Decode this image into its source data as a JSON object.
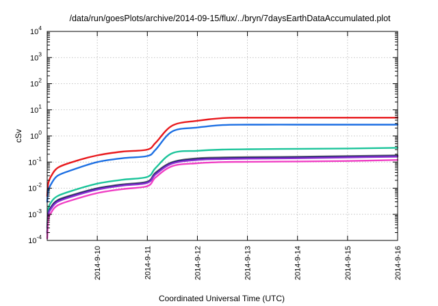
{
  "chart_data": {
    "type": "line",
    "title": "/data/run/goesPlots/archive/2014-09-15/flux/../bryn/7daysEarthDataAccumulated.plot",
    "xlabel": "Coordinated Universal Time (UTC)",
    "ylabel": "cSv",
    "y_scale": "log",
    "ylim": [
      0.0001,
      10000
    ],
    "xlim": [
      "2014-9-9",
      "2014-9-16"
    ],
    "grid": true,
    "legend": "none",
    "y_ticks": [
      {
        "base": "10",
        "exp": "-4",
        "value": 0.0001
      },
      {
        "base": "10",
        "exp": "-3",
        "value": 0.001
      },
      {
        "base": "10",
        "exp": "-2",
        "value": 0.01
      },
      {
        "base": "10",
        "exp": "-1",
        "value": 0.1
      },
      {
        "base": "10",
        "exp": "0",
        "value": 1
      },
      {
        "base": "10",
        "exp": "1",
        "value": 10
      },
      {
        "base": "10",
        "exp": "2",
        "value": 100
      },
      {
        "base": "10",
        "exp": "3",
        "value": 1000
      },
      {
        "base": "10",
        "exp": "4",
        "value": 10000
      }
    ],
    "x_ticks": [
      "2014-9-10",
      "2014-9-11",
      "2014-9-12",
      "2014-9-13",
      "2014-9-14",
      "2014-9-15",
      "2014-9-16"
    ],
    "x": [
      "2014-9-9 00:00",
      "2014-9-9 00:30",
      "2014-9-9 02:00",
      "2014-9-9 05:00",
      "2014-9-9 12:00",
      "2014-9-10 00:00",
      "2014-9-10 12:00",
      "2014-9-11 00:00",
      "2014-9-11 04:00",
      "2014-9-11 12:00",
      "2014-9-12 00:00",
      "2014-9-12 12:00",
      "2014-9-13 00:00",
      "2014-9-14 00:00",
      "2014-9-15 00:00",
      "2014-9-16 00:00"
    ],
    "series": [
      {
        "color": "#e8191d",
        "values": [
          0.005,
          0.015,
          0.03,
          0.06,
          0.1,
          0.18,
          0.25,
          0.3,
          0.55,
          2.5,
          3.8,
          4.8,
          5.0,
          5.0,
          5.0,
          5.0
        ]
      },
      {
        "color": "#1c6fe3",
        "values": [
          0.003,
          0.008,
          0.015,
          0.03,
          0.05,
          0.1,
          0.14,
          0.17,
          0.3,
          1.5,
          2.1,
          2.6,
          2.7,
          2.7,
          2.7,
          2.7
        ]
      },
      {
        "color": "#1bc49a",
        "values": [
          0.0003,
          0.0015,
          0.003,
          0.005,
          0.008,
          0.015,
          0.021,
          0.027,
          0.06,
          0.22,
          0.27,
          0.3,
          0.31,
          0.32,
          0.33,
          0.35
        ]
      },
      {
        "color": "#6b6b6b",
        "values": [
          0.0002,
          0.001,
          0.002,
          0.0035,
          0.0055,
          0.01,
          0.014,
          0.018,
          0.04,
          0.1,
          0.14,
          0.15,
          0.155,
          0.16,
          0.17,
          0.18
        ]
      },
      {
        "color": "#1d1d7a",
        "values": [
          0.0002,
          0.001,
          0.0019,
          0.0033,
          0.0052,
          0.0095,
          0.0133,
          0.017,
          0.037,
          0.095,
          0.13,
          0.14,
          0.145,
          0.15,
          0.16,
          0.17
        ]
      },
      {
        "color": "#8c2fd1",
        "values": [
          0.00018,
          0.0009,
          0.0017,
          0.003,
          0.0048,
          0.0088,
          0.0125,
          0.016,
          0.034,
          0.088,
          0.12,
          0.13,
          0.135,
          0.14,
          0.15,
          0.16
        ]
      },
      {
        "color": "#f03fc4",
        "values": [
          0.00012,
          0.0006,
          0.0012,
          0.0022,
          0.0035,
          0.0065,
          0.0092,
          0.012,
          0.026,
          0.07,
          0.09,
          0.1,
          0.102,
          0.105,
          0.11,
          0.12
        ]
      }
    ]
  }
}
